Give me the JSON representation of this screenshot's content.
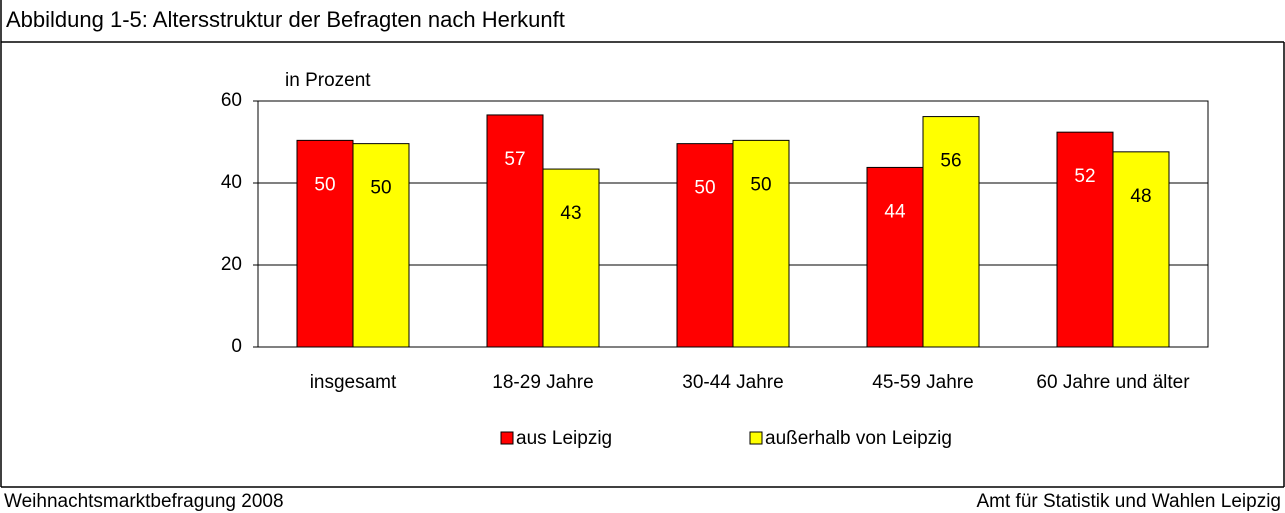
{
  "chart_data": {
    "type": "bar",
    "title": "Abbildung 1-5: Altersstruktur der Befragten nach Herkunft",
    "y_label": "in Prozent",
    "footer_left": "Weihnachtsmarktbefragung 2008",
    "footer_right": "Amt für Statistik und Wahlen Leipzig",
    "categories": [
      "insgesamt",
      "18-29 Jahre",
      "30-44 Jahre",
      "45-59 Jahre",
      "60 Jahre und älter"
    ],
    "series": [
      {
        "name": "aus Leipzig",
        "color": "#ff0000",
        "label_color": "#ffffff",
        "values": [
          50.4,
          56.6,
          49.6,
          43.8,
          52.4
        ],
        "value_labels": [
          "50",
          "57",
          "50",
          "44",
          "52"
        ]
      },
      {
        "name": "außerhalb von Leipzig",
        "color": "#ffff00",
        "label_color": "#000000",
        "values": [
          49.6,
          43.4,
          50.4,
          56.2,
          47.6
        ],
        "value_labels": [
          "50",
          "43",
          "50",
          "56",
          "48"
        ]
      }
    ],
    "ylim": [
      0,
      60
    ],
    "yticks": [
      0,
      20,
      40,
      60
    ],
    "grid": true
  }
}
